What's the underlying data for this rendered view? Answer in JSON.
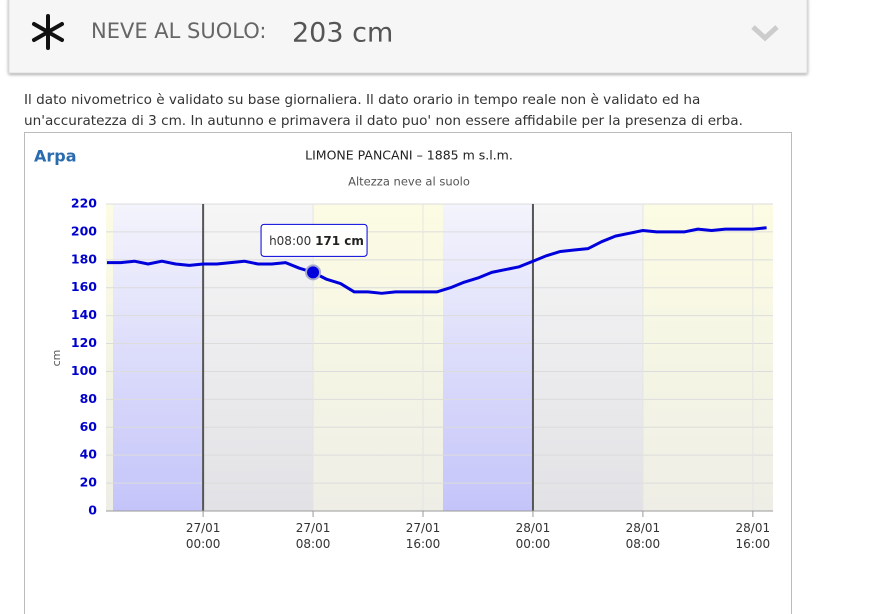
{
  "header": {
    "label": "NEVE AL SUOLO:",
    "value": "203 cm"
  },
  "description": "Il dato nivometrico è validato su base giornaliera. Il dato orario in tempo reale non è validato ed ha un'accuratezza di 3 cm. In autunno e primavera il dato puo' non essere affidabile per la presenza di erba.",
  "logo": "Arpa",
  "chart_data": {
    "type": "line",
    "title": "LIMONE PANCANI – 1885 m s.l.m.",
    "subtitle": "Altezza neve al suolo",
    "y_label": "cm",
    "x": [
      "26/01 17:00",
      "26/01 18:00",
      "26/01 19:00",
      "26/01 20:00",
      "26/01 21:00",
      "26/01 22:00",
      "26/01 23:00",
      "27/01 00:00",
      "27/01 01:00",
      "27/01 02:00",
      "27/01 03:00",
      "27/01 04:00",
      "27/01 05:00",
      "27/01 06:00",
      "27/01 07:00",
      "27/01 08:00",
      "27/01 09:00",
      "27/01 10:00",
      "27/01 11:00",
      "27/01 12:00",
      "27/01 13:00",
      "27/01 14:00",
      "27/01 15:00",
      "27/01 16:00",
      "27/01 17:00",
      "27/01 18:00",
      "27/01 19:00",
      "27/01 20:00",
      "27/01 21:00",
      "27/01 22:00",
      "27/01 23:00",
      "28/01 00:00",
      "28/01 01:00",
      "28/01 02:00",
      "28/01 03:00",
      "28/01 04:00",
      "28/01 05:00",
      "28/01 06:00",
      "28/01 07:00",
      "28/01 08:00",
      "28/01 09:00",
      "28/01 10:00",
      "28/01 11:00",
      "28/01 12:00",
      "28/01 13:00",
      "28/01 14:00",
      "28/01 15:00",
      "28/01 16:00",
      "28/01 17:00"
    ],
    "series": [
      {
        "name": "Altezza neve al suolo",
        "color": "#0000dd",
        "values": [
          178,
          178,
          179,
          177,
          179,
          177,
          176,
          177,
          177,
          178,
          179,
          177,
          177,
          178,
          174,
          171,
          166,
          163,
          157,
          157,
          156,
          157,
          157,
          157,
          157,
          160,
          164,
          167,
          171,
          173,
          175,
          179,
          183,
          186,
          187,
          188,
          193,
          197,
          199,
          201,
          200,
          200,
          200,
          202,
          201,
          202,
          202,
          202,
          203
        ]
      }
    ],
    "xlim": [
      "26/01 16:56",
      "28/01 17:28"
    ],
    "xticks": [
      {
        "value": "27/01 00:00",
        "label": "27/01\n00:00"
      },
      {
        "value": "27/01 08:00",
        "label": "27/01\n08:00"
      },
      {
        "value": "27/01 16:00",
        "label": "27/01\n16:00"
      },
      {
        "value": "28/01 00:00",
        "label": "28/01\n00:00"
      },
      {
        "value": "28/01 08:00",
        "label": "28/01\n08:00"
      },
      {
        "value": "28/01 16:00",
        "label": "28/01\n16:00"
      }
    ],
    "ylim": [
      0,
      220
    ],
    "yticks": [
      0,
      20,
      40,
      60,
      80,
      100,
      120,
      140,
      160,
      180,
      200,
      220
    ],
    "grid": true,
    "tooltip": {
      "index": 15,
      "time": "h08:00",
      "text": "171 cm"
    }
  }
}
